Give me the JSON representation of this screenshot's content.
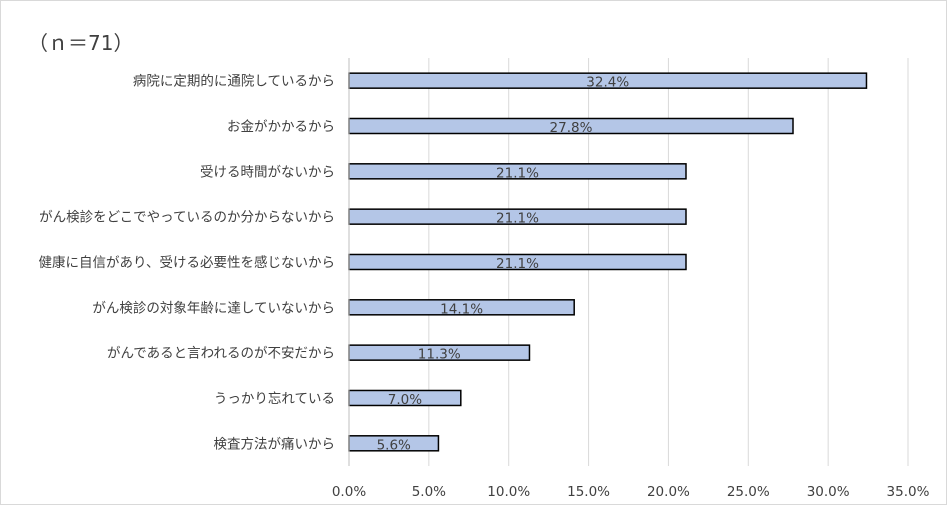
{
  "sample_label": "（ｎ＝71）",
  "colors": {
    "bar_fill": "#b4c6e7",
    "bar_stroke": "#000000",
    "grid": "#d9d9d9",
    "text": "#404040"
  },
  "chart_data": {
    "type": "bar",
    "orientation": "horizontal",
    "title": "",
    "xlabel": "",
    "ylabel": "",
    "categories": [
      "病院に定期的に通院しているから",
      "お金がかかるから",
      "受ける時間がないから",
      "がん検診をどこでやっているのか分からないから",
      "健康に自信があり、受ける必要性を感じないから",
      "がん検診の対象年齢に達していないから",
      "がんであると言われるのが不安だから",
      "うっかり忘れている",
      "検査方法が痛いから"
    ],
    "values": [
      32.4,
      27.8,
      21.1,
      21.1,
      21.1,
      14.1,
      11.3,
      7.0,
      5.6
    ],
    "data_labels": [
      "32.4%",
      "27.8%",
      "21.1%",
      "21.1%",
      "21.1%",
      "14.1%",
      "11.3%",
      "7.0%",
      "5.6%"
    ],
    "xlim": [
      0,
      35
    ],
    "x_ticks": [
      "0.0%",
      "5.0%",
      "10.0%",
      "15.0%",
      "20.0%",
      "25.0%",
      "30.0%",
      "35.0%"
    ],
    "grid": true
  }
}
